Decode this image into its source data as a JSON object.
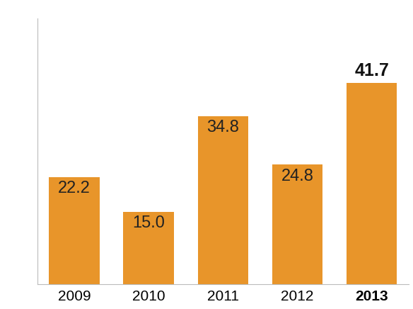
{
  "chart_data": {
    "type": "bar",
    "categories": [
      "2009",
      "2010",
      "2011",
      "2012",
      "2013"
    ],
    "values": [
      22.2,
      15.0,
      34.8,
      24.8,
      41.7
    ],
    "value_labels": [
      "22.2",
      "15.0",
      "34.8",
      "24.8",
      "41.7"
    ],
    "color": "#e8952a",
    "ylim": [
      0,
      55
    ],
    "data_labels": true,
    "tick_labels": "x",
    "grid": false
  }
}
